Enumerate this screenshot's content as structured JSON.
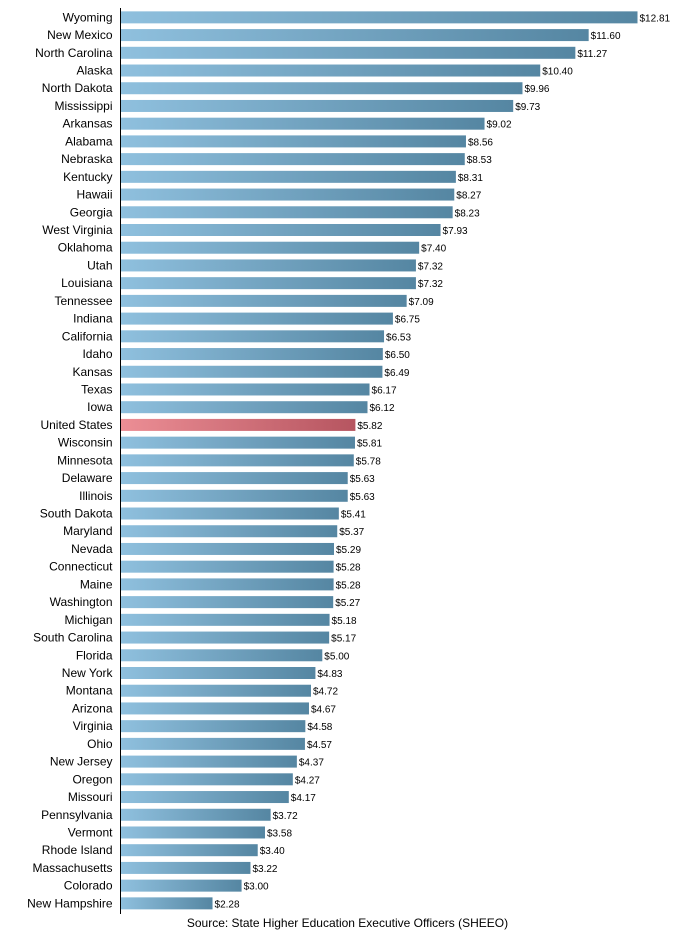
{
  "chart_data": {
    "type": "bar",
    "orientation": "horizontal",
    "categories": [
      "Wyoming",
      "New Mexico",
      "North Carolina",
      "Alaska",
      "North Dakota",
      "Mississippi",
      "Arkansas",
      "Alabama",
      "Nebraska",
      "Kentucky",
      "Hawaii",
      "Georgia",
      "West Virginia",
      "Oklahoma",
      "Utah",
      "Louisiana",
      "Tennessee",
      "Indiana",
      "California",
      "Idaho",
      "Kansas",
      "Texas",
      "Iowa",
      "United States",
      "Wisconsin",
      "Minnesota",
      "Delaware",
      "Illinois",
      "South Dakota",
      "Maryland",
      "Nevada",
      "Connecticut",
      "Maine",
      "Washington",
      "Michigan",
      "South Carolina",
      "Florida",
      "New York",
      "Montana",
      "Arizona",
      "Virginia",
      "Ohio",
      "New Jersey",
      "Oregon",
      "Missouri",
      "Pennsylvania",
      "Vermont",
      "Rhode Island",
      "Massachusetts",
      "Colorado",
      "New Hampshire"
    ],
    "values": [
      12.81,
      11.6,
      11.27,
      10.4,
      9.96,
      9.73,
      9.02,
      8.56,
      8.53,
      8.31,
      8.27,
      8.23,
      7.93,
      7.4,
      7.32,
      7.32,
      7.09,
      6.75,
      6.53,
      6.5,
      6.49,
      6.17,
      6.12,
      5.82,
      5.81,
      5.78,
      5.63,
      5.63,
      5.41,
      5.37,
      5.29,
      5.28,
      5.28,
      5.27,
      5.18,
      5.17,
      5.0,
      4.83,
      4.72,
      4.67,
      4.58,
      4.57,
      4.37,
      4.27,
      4.17,
      3.72,
      3.58,
      3.4,
      3.22,
      3.0,
      2.28
    ],
    "value_labels": [
      "$12.81",
      "$11.60",
      "$11.27",
      "$10.40",
      "$9.96",
      "$9.73",
      "$9.02",
      "$8.56",
      "$8.53",
      "$8.31",
      "$8.27",
      "$8.23",
      "$7.93",
      "$7.40",
      "$7.32",
      "$7.32",
      "$7.09",
      "$6.75",
      "$6.53",
      "$6.50",
      "$6.49",
      "$6.17",
      "$6.12",
      "$5.82",
      "$5.81",
      "$5.78",
      "$5.63",
      "$5.63",
      "$5.41",
      "$5.37",
      "$5.29",
      "$5.28",
      "$5.28",
      "$5.27",
      "$5.18",
      "$5.17",
      "$5.00",
      "$4.83",
      "$4.72",
      "$4.67",
      "$4.58",
      "$4.57",
      "$4.37",
      "$4.27",
      "$4.17",
      "$3.72",
      "$3.58",
      "$3.40",
      "$3.22",
      "$3.00",
      "$2.28"
    ],
    "highlight_category": "United States",
    "xlim": [
      0,
      12.81
    ],
    "grid": false,
    "colors": {
      "bar_light": "#8fc0de",
      "bar_dark": "#5586a2",
      "highlight_light": "#ec8e95",
      "highlight_dark": "#b65560",
      "axis": "#000000"
    },
    "source": "Source: State Higher Education Executive Officers (SHEEO)"
  }
}
